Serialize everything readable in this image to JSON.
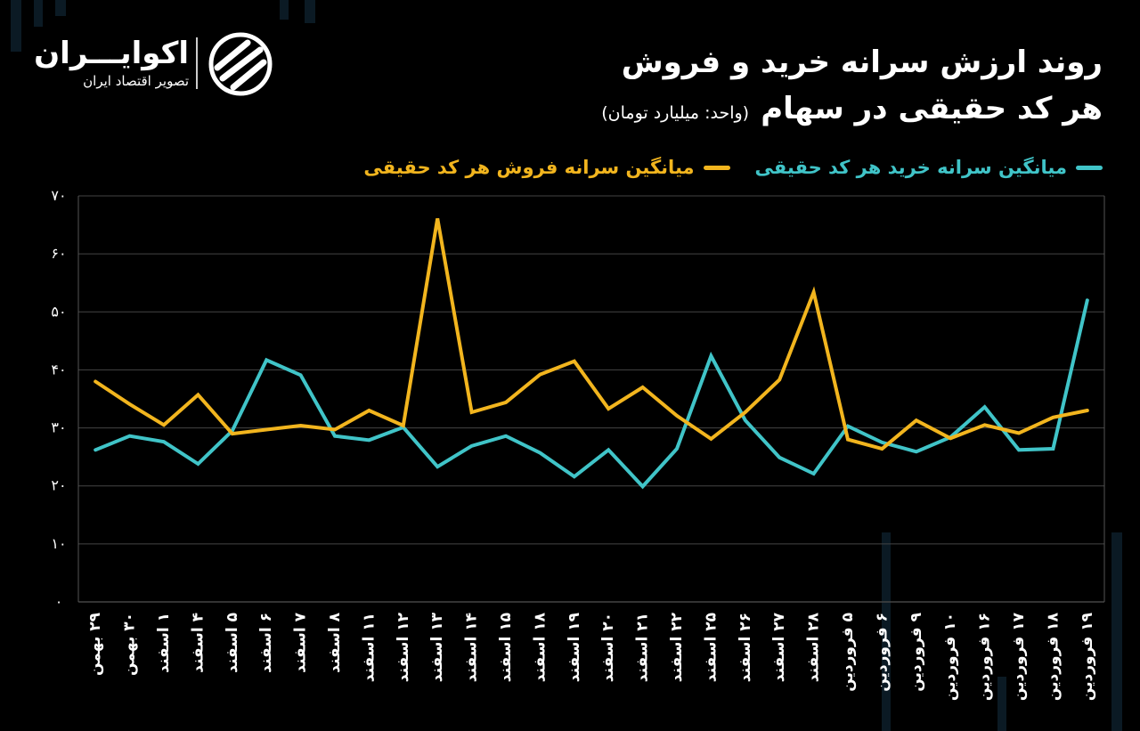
{
  "logo": {
    "name": "اکوایـــران",
    "subtitle": "تصویر اقتصاد ایران",
    "icon": "ecoiran-logo-icon"
  },
  "title": {
    "line1": "روند ارزش سرانه خرید و فروش",
    "line2": "هر کد حقیقی در سهام",
    "unit": "(واحد: میلیارد تومان)"
  },
  "colors": {
    "buy": "#40c4c8",
    "sell": "#f2b51e",
    "background": "#000000",
    "grid": "#444444"
  },
  "chart_data": {
    "type": "line",
    "title": "روند ارزش سرانه خرید و فروش هر کد حقیقی در سهام",
    "ylabel": "",
    "xlabel": "",
    "ylim": [
      0,
      70
    ],
    "yticks": [
      "۰",
      "۱۰",
      "۲۰",
      "۳۰",
      "۴۰",
      "۵۰",
      "۶۰",
      "۷۰"
    ],
    "ytick_values": [
      0,
      10,
      20,
      30,
      40,
      50,
      60,
      70
    ],
    "grid": true,
    "legend_position": "top",
    "categories": [
      "۲۹ بهمن",
      "۳۰ بهمن",
      "۱ اسفند",
      "۴ اسفند",
      "۵ اسفند",
      "۶ اسفند",
      "۷ اسفند",
      "۸ اسفند",
      "۱۱ اسفند",
      "۱۲ اسفند",
      "۱۳ اسفند",
      "۱۴ اسفند",
      "۱۵ اسفند",
      "۱۸ اسفند",
      "۱۹ اسفند",
      "۲۰ اسفند",
      "۲۱ اسفند",
      "۲۲ اسفند",
      "۲۵ اسفند",
      "۲۶ اسفند",
      "۲۷ اسفند",
      "۲۸ اسفند",
      "۵ فروردین",
      "۶ فروردین",
      "۹ فروردین",
      "۱۰ فروردین",
      "۱۶ فروردین",
      "۱۷ فروردین",
      "۱۸ فروردین",
      "۱۹ فروردین"
    ],
    "series": [
      {
        "name": "میانگین سرانه خرید هر کد حقیقی",
        "color": "#40c4c8",
        "values": [
          26.2,
          28.6,
          27.6,
          23.8,
          29.5,
          41.7,
          39.1,
          28.6,
          27.9,
          30.1,
          23.3,
          26.9,
          28.6,
          25.7,
          21.6,
          26.2,
          19.9,
          26.4,
          42.4,
          31.3,
          24.9,
          22.1,
          30.3,
          27.5,
          25.9,
          28.4,
          33.6,
          26.2,
          26.4,
          52.0
        ]
      },
      {
        "name": "میانگین سرانه فروش هر کد حقیقی",
        "color": "#f2b51e",
        "values": [
          38.0,
          34.1,
          30.5,
          35.7,
          29.0,
          29.7,
          30.4,
          29.7,
          33.0,
          30.4,
          66.1,
          32.7,
          34.4,
          39.2,
          41.5,
          33.3,
          37.0,
          32.1,
          28.1,
          32.7,
          38.3,
          53.4,
          28.0,
          26.4,
          31.3,
          28.2,
          30.5,
          29.1,
          31.8,
          33.0
        ]
      }
    ]
  }
}
